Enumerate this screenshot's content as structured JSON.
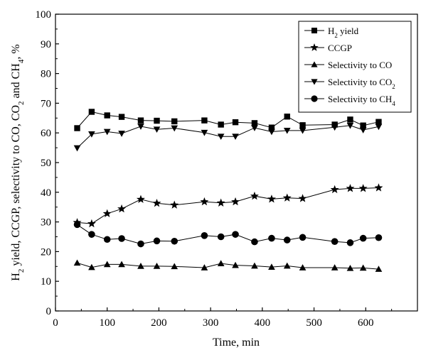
{
  "chart_data": {
    "type": "line",
    "title": "",
    "xlabel": "Time, min",
    "ylabel": {
      "parts": [
        {
          "t": "H"
        },
        {
          "t": "2",
          "sub": true
        },
        {
          "t": " yield, CCGP, selectivity to CO, CO"
        },
        {
          "t": "2",
          "sub": true
        },
        {
          "t": " and CH"
        },
        {
          "t": "4",
          "sub": true
        },
        {
          "t": ", %"
        }
      ]
    },
    "xlim": [
      0,
      700
    ],
    "ylim": [
      0,
      100
    ],
    "xticks": [
      0,
      100,
      200,
      300,
      400,
      500,
      600
    ],
    "yticks": [
      0,
      10,
      20,
      30,
      40,
      50,
      60,
      70,
      80,
      90,
      100
    ],
    "grid": false,
    "legend_position": "top-right",
    "x": [
      42,
      70,
      100,
      128,
      165,
      196,
      230,
      288,
      320,
      348,
      385,
      418,
      448,
      478,
      540,
      570,
      595,
      625
    ],
    "series": [
      {
        "name": "H2 yield",
        "legend_parts": [
          {
            "t": "H"
          },
          {
            "t": "2",
            "sub": true
          },
          {
            "t": " yield"
          }
        ],
        "marker": "square",
        "values": [
          61.6,
          67.1,
          65.9,
          65.4,
          64.2,
          64.1,
          63.9,
          64.2,
          62.8,
          63.6,
          63.3,
          61.8,
          65.5,
          62.6,
          62.8,
          64.5,
          62.5,
          63.7
        ]
      },
      {
        "name": "CCGP",
        "legend_parts": [
          {
            "t": "CCGP"
          }
        ],
        "marker": "star",
        "values": [
          29.8,
          29.4,
          32.8,
          34.4,
          37.6,
          36.3,
          35.7,
          36.8,
          36.4,
          36.8,
          38.7,
          37.7,
          38.1,
          37.9,
          40.9,
          41.3,
          41.3,
          41.5
        ]
      },
      {
        "name": "Selectivity to CO",
        "legend_parts": [
          {
            "t": "Selectivity to CO"
          }
        ],
        "marker": "triangle-up",
        "values": [
          16.2,
          14.7,
          15.7,
          15.7,
          15.1,
          15.1,
          15.0,
          14.6,
          16.0,
          15.4,
          15.2,
          14.8,
          15.2,
          14.6,
          14.6,
          14.4,
          14.5,
          14.1
        ]
      },
      {
        "name": "Selectivity to CO2",
        "legend_parts": [
          {
            "t": "Selectivity to CO"
          },
          {
            "t": "2",
            "sub": true
          }
        ],
        "marker": "triangle-down",
        "values": [
          54.9,
          59.6,
          60.4,
          59.8,
          62.2,
          61.2,
          61.6,
          60.1,
          58.8,
          58.8,
          61.7,
          60.4,
          60.8,
          60.8,
          61.9,
          62.5,
          61.0,
          62.1
        ]
      },
      {
        "name": "Selectivity to CH4",
        "legend_parts": [
          {
            "t": "Selectivity to CH"
          },
          {
            "t": "4",
            "sub": true
          }
        ],
        "marker": "circle",
        "values": [
          29.1,
          25.8,
          24.1,
          24.4,
          22.6,
          23.6,
          23.5,
          25.4,
          25.0,
          25.8,
          23.3,
          24.5,
          23.9,
          24.8,
          23.4,
          23.0,
          24.5,
          24.7
        ]
      }
    ]
  }
}
